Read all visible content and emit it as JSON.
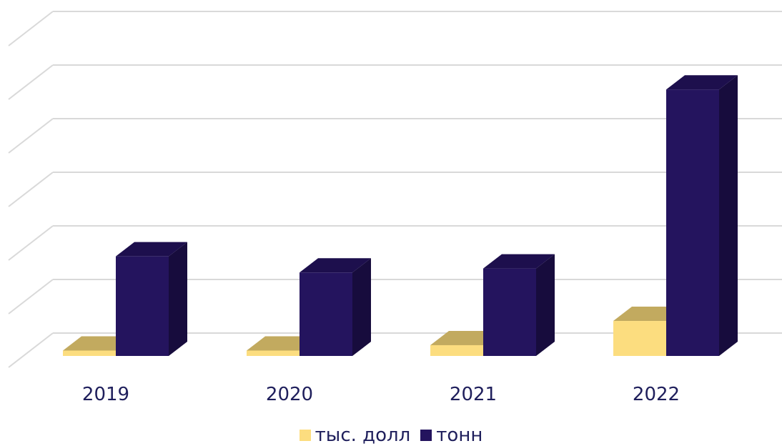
{
  "chart_data": {
    "type": "bar",
    "categories": [
      "2019",
      "2020",
      "2021",
      "2022"
    ],
    "series": [
      {
        "name": "тыс. долл",
        "values": [
          2,
          2,
          4,
          13
        ],
        "color": "#fcdd7f",
        "top_color": "#c2aa5f",
        "side_color": "#9c8846"
      },
      {
        "name": "тонн",
        "values": [
          37,
          31,
          32.5,
          99
        ],
        "color": "#24145e",
        "top_color": "#1d0f4d",
        "side_color": "#170c3d"
      }
    ],
    "ylim": [
      0,
      128
    ],
    "grid": true,
    "legend": "bottom",
    "style": "3d-column"
  }
}
